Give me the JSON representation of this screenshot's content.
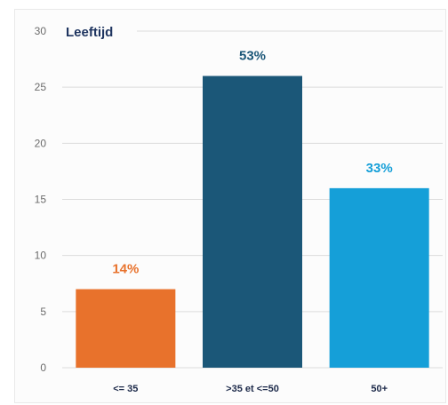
{
  "chart_data": {
    "type": "bar",
    "title": "Leeftijd",
    "categories": [
      "<= 35",
      ">35 et <=50",
      "50+"
    ],
    "values": [
      7,
      26,
      16
    ],
    "data_labels": [
      "14%",
      "53%",
      "33%"
    ],
    "colors": [
      "#e8722c",
      "#1b5778",
      "#159fd8"
    ],
    "yticks": [
      0,
      5,
      10,
      15,
      20,
      25,
      30
    ],
    "ylim": [
      0,
      30
    ],
    "grid": true,
    "legend": "none"
  }
}
